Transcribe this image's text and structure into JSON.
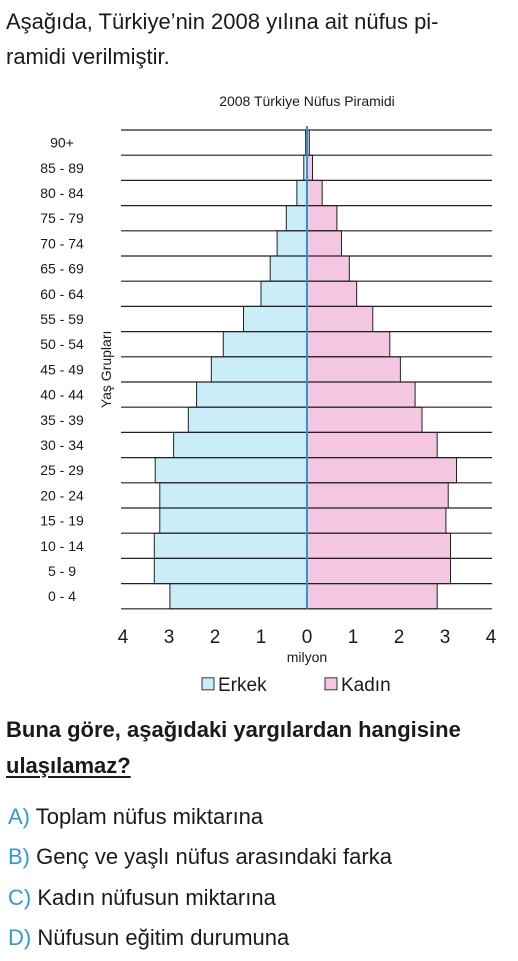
{
  "intro": {
    "line1": "Aşağıda, Türkiye’nin 2008 yılına ait nüfus pi-",
    "line2": "ramidi verilmiştir."
  },
  "chart_data": {
    "type": "bar",
    "orientation": "horizontal-pyramid",
    "title": "2008 Türkiye Nüfus Piramidi",
    "xlabel": "milyon",
    "ylabel": "Yaş Grupları",
    "categories": [
      "90+",
      "85 - 89",
      "80 - 84",
      "75 - 79",
      "70 - 74",
      "65 - 69",
      "60 - 64",
      "55 - 59",
      "50 - 54",
      "45 - 49",
      "40 - 44",
      "35 - 39",
      "30 - 34",
      "25 - 29",
      "20 - 24",
      "15 - 19",
      "10 - 14",
      "5 -  9",
      "0 -  4"
    ],
    "series": [
      {
        "name": "Erkek",
        "side": "left",
        "color": "#c9eef8",
        "values": [
          0.03,
          0.07,
          0.22,
          0.45,
          0.65,
          0.8,
          1.0,
          1.38,
          1.82,
          2.08,
          2.4,
          2.58,
          2.9,
          3.3,
          3.2,
          3.2,
          3.32,
          3.32,
          2.98
        ]
      },
      {
        "name": "Kadın",
        "side": "right",
        "color": "#f5c6e2",
        "values": [
          0.05,
          0.12,
          0.33,
          0.65,
          0.75,
          0.92,
          1.08,
          1.43,
          1.8,
          2.03,
          2.35,
          2.5,
          2.83,
          3.25,
          3.07,
          3.02,
          3.12,
          3.12,
          2.83
        ]
      }
    ],
    "xticks": [
      4,
      3,
      2,
      1,
      0,
      1,
      2,
      3,
      4
    ],
    "xlim": [
      -4,
      4
    ],
    "legend_position": "bottom"
  },
  "question": {
    "line1": "Buna göre, aşağıdaki yargılardan hangisine",
    "line2": "ulaşılamaz?"
  },
  "options": [
    {
      "letter": "A)",
      "text": "Toplam nüfus miktarına"
    },
    {
      "letter": "B)",
      "text": "Genç ve yaşlı nüfus arasındaki farka"
    },
    {
      "letter": "C)",
      "text": "Kadın nüfusun miktarına"
    },
    {
      "letter": "D)",
      "text": "Nüfusun eğitim durumuna"
    }
  ]
}
